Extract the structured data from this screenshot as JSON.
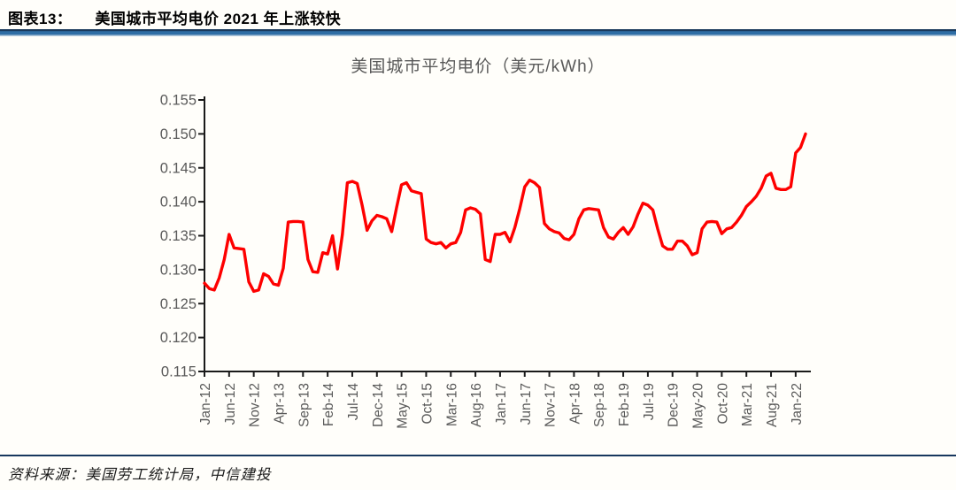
{
  "header": {
    "tag": "图表13：",
    "title": "美国城市平均电价 2021 年上涨较快"
  },
  "chart": {
    "title": "美国城市平均电价（美元/kWh）"
  },
  "footer": {
    "source": "资料来源：美国劳工统计局，中信建投"
  },
  "colors": {
    "line": "#FE0000",
    "axis": "#1A1A1A",
    "axis_label": "#595959",
    "divider_navy": "#17375E",
    "header_bar_blue": "#2F6EA5"
  },
  "chart_data": {
    "type": "line",
    "title": "美国城市平均电价（美元/kWh）",
    "xlabel": "",
    "ylabel": "",
    "ylim": [
      0.115,
      0.155
    ],
    "y_tick_labels": [
      "0.155",
      "0.150",
      "0.145",
      "0.140",
      "0.135",
      "0.130",
      "0.125",
      "0.120",
      "0.115"
    ],
    "x_tick_labels": [
      "Jan-12",
      "Jun-12",
      "Nov-12",
      "Apr-13",
      "Sep-13",
      "Feb-14",
      "Jul-14",
      "Dec-14",
      "May-15",
      "Oct-15",
      "Mar-16",
      "Aug-16",
      "Jan-17",
      "Jun-17",
      "Nov-17",
      "Apr-18",
      "Sep-18",
      "Feb-19",
      "Jul-19",
      "Dec-19",
      "May-20",
      "Oct-20",
      "Mar-21",
      "Aug-21",
      "Jan-22"
    ],
    "x_tick_interval_months": 5,
    "legend": [],
    "grid": false,
    "months": [
      "Jan-12",
      "Feb-12",
      "Mar-12",
      "Apr-12",
      "May-12",
      "Jun-12",
      "Jul-12",
      "Aug-12",
      "Sep-12",
      "Oct-12",
      "Nov-12",
      "Dec-12",
      "Jan-13",
      "Feb-13",
      "Mar-13",
      "Apr-13",
      "May-13",
      "Jun-13",
      "Jul-13",
      "Aug-13",
      "Sep-13",
      "Oct-13",
      "Nov-13",
      "Dec-13",
      "Jan-14",
      "Feb-14",
      "Mar-14",
      "Apr-14",
      "May-14",
      "Jun-14",
      "Jul-14",
      "Aug-14",
      "Sep-14",
      "Oct-14",
      "Nov-14",
      "Dec-14",
      "Jan-15",
      "Feb-15",
      "Mar-15",
      "Apr-15",
      "May-15",
      "Jun-15",
      "Jul-15",
      "Aug-15",
      "Sep-15",
      "Oct-15",
      "Nov-15",
      "Dec-15",
      "Jan-16",
      "Feb-16",
      "Mar-16",
      "Apr-16",
      "May-16",
      "Jun-16",
      "Jul-16",
      "Aug-16",
      "Sep-16",
      "Oct-16",
      "Nov-16",
      "Dec-16",
      "Jan-17",
      "Feb-17",
      "Mar-17",
      "Apr-17",
      "May-17",
      "Jun-17",
      "Jul-17",
      "Aug-17",
      "Sep-17",
      "Oct-17",
      "Nov-17",
      "Dec-17",
      "Jan-18",
      "Feb-18",
      "Mar-18",
      "Apr-18",
      "May-18",
      "Jun-18",
      "Jul-18",
      "Aug-18",
      "Sep-18",
      "Oct-18",
      "Nov-18",
      "Dec-18",
      "Jan-19",
      "Feb-19",
      "Mar-19",
      "Apr-19",
      "May-19",
      "Jun-19",
      "Jul-19",
      "Aug-19",
      "Sep-19",
      "Oct-19",
      "Nov-19",
      "Dec-19",
      "Jan-20",
      "Feb-20",
      "Mar-20",
      "Apr-20",
      "May-20",
      "Jun-20",
      "Jul-20",
      "Aug-20",
      "Sep-20",
      "Oct-20",
      "Nov-20",
      "Dec-20",
      "Jan-21",
      "Feb-21",
      "Mar-21",
      "Apr-21",
      "May-21",
      "Jun-21",
      "Jul-21",
      "Aug-21",
      "Sep-21",
      "Oct-21",
      "Nov-21",
      "Dec-21",
      "Jan-22",
      "Feb-22",
      "Mar-22"
    ],
    "values": [
      0.128,
      0.1272,
      0.127,
      0.1288,
      0.1315,
      0.1352,
      0.1332,
      0.1331,
      0.133,
      0.1282,
      0.1268,
      0.127,
      0.1294,
      0.129,
      0.1279,
      0.1277,
      0.1302,
      0.137,
      0.1371,
      0.1371,
      0.137,
      0.1315,
      0.1297,
      0.1296,
      0.1325,
      0.1323,
      0.135,
      0.1301,
      0.1352,
      0.1428,
      0.143,
      0.1427,
      0.1395,
      0.1358,
      0.1372,
      0.138,
      0.1378,
      0.1375,
      0.1356,
      0.1392,
      0.1425,
      0.1428,
      0.1416,
      0.1414,
      0.1412,
      0.1345,
      0.134,
      0.1338,
      0.134,
      0.1332,
      0.1338,
      0.134,
      0.1355,
      0.1388,
      0.1391,
      0.1389,
      0.1382,
      0.1315,
      0.1312,
      0.1352,
      0.1352,
      0.1355,
      0.1341,
      0.1362,
      0.139,
      0.1422,
      0.1432,
      0.1428,
      0.1421,
      0.1368,
      0.136,
      0.1356,
      0.1354,
      0.1346,
      0.1344,
      0.1352,
      0.1375,
      0.1388,
      0.139,
      0.1389,
      0.1388,
      0.1362,
      0.1348,
      0.1345,
      0.1355,
      0.1362,
      0.1352,
      0.1363,
      0.1382,
      0.1398,
      0.1395,
      0.1388,
      0.136,
      0.1335,
      0.133,
      0.133,
      0.1342,
      0.1342,
      0.1335,
      0.1322,
      0.1325,
      0.136,
      0.137,
      0.1371,
      0.137,
      0.1353,
      0.136,
      0.1362,
      0.137,
      0.138,
      0.1393,
      0.14,
      0.1408,
      0.142,
      0.1438,
      0.1442,
      0.142,
      0.1418,
      0.1418,
      0.1422,
      0.1472,
      0.148,
      0.15
    ]
  }
}
